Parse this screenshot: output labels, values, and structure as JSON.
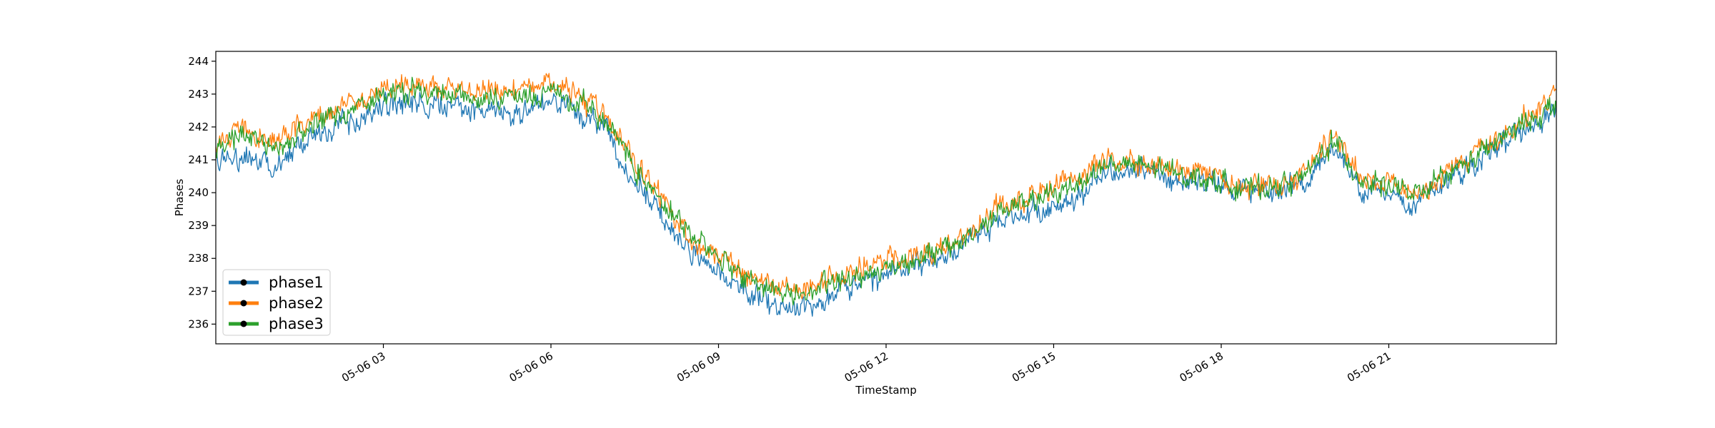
{
  "chart_data": {
    "type": "line",
    "title": "",
    "xlabel": "TimeStamp",
    "ylabel": "Phases",
    "xlim": [
      "2024-05-06 00:00",
      "2024-05-07 00:00"
    ],
    "ylim": [
      235.4,
      244.3
    ],
    "grid": false,
    "legend_position": "lower-left",
    "x_tick_labels": [
      "05-06 03",
      "05-06 06",
      "05-06 09",
      "05-06 12",
      "05-06 15",
      "05-06 18",
      "05-06 21"
    ],
    "x_tick_hours": [
      3,
      6,
      9,
      12,
      15,
      18,
      21
    ],
    "y_ticks": [
      236,
      237,
      238,
      239,
      240,
      241,
      242,
      243,
      244
    ],
    "series": [
      {
        "name": "phase1",
        "color": "#1f77b4",
        "x_hours": [
          0,
          0.5,
          1,
          1.5,
          2,
          2.5,
          3,
          3.5,
          4,
          4.5,
          5,
          5.5,
          6,
          6.5,
          7,
          7.5,
          8,
          8.5,
          9,
          9.5,
          10,
          10.5,
          11,
          11.5,
          12,
          12.5,
          13,
          13.5,
          14,
          14.5,
          15,
          15.5,
          16,
          16.5,
          17,
          17.5,
          18,
          18.5,
          19,
          19.5,
          20,
          20.5,
          21,
          21.5,
          22,
          22.5,
          23,
          23.5,
          24
        ],
        "values": [
          240.9,
          241.1,
          240.8,
          241.4,
          241.9,
          242.2,
          242.6,
          242.7,
          242.6,
          242.5,
          242.5,
          242.4,
          242.9,
          242.4,
          241.8,
          240.4,
          239.3,
          238.2,
          237.6,
          237.0,
          236.6,
          236.5,
          236.9,
          237.3,
          237.5,
          237.8,
          238.0,
          238.6,
          239.2,
          239.4,
          239.5,
          240.0,
          240.7,
          240.6,
          240.5,
          240.4,
          240.2,
          240.0,
          240.1,
          240.3,
          241.4,
          240.1,
          240.0,
          239.7,
          240.4,
          240.9,
          241.5,
          242.0,
          242.5
        ]
      },
      {
        "name": "phase2",
        "color": "#ff7f0e",
        "x_hours": [
          0,
          0.5,
          1,
          1.5,
          2,
          2.5,
          3,
          3.5,
          4,
          4.5,
          5,
          5.5,
          6,
          6.5,
          7,
          7.5,
          8,
          8.5,
          9,
          9.5,
          10,
          10.5,
          11,
          11.5,
          12,
          12.5,
          13,
          13.5,
          14,
          14.5,
          15,
          15.5,
          16,
          16.5,
          17,
          17.5,
          18,
          18.5,
          19,
          19.5,
          20,
          20.5,
          21,
          21.5,
          22,
          22.5,
          23,
          23.5,
          24
        ],
        "values": [
          241.5,
          241.9,
          241.5,
          242.0,
          242.5,
          242.8,
          243.2,
          243.3,
          243.2,
          243.1,
          243.1,
          243.0,
          243.4,
          242.9,
          242.3,
          240.9,
          239.8,
          238.6,
          238.1,
          237.5,
          237.1,
          237.0,
          237.4,
          237.7,
          237.9,
          238.1,
          238.3,
          238.8,
          239.6,
          239.8,
          240.2,
          240.6,
          241.1,
          240.9,
          240.8,
          240.6,
          240.4,
          240.1,
          240.3,
          240.6,
          241.8,
          240.5,
          240.3,
          240.0,
          240.6,
          241.2,
          241.7,
          242.3,
          242.9
        ]
      },
      {
        "name": "phase3",
        "color": "#2ca02c",
        "x_hours": [
          0,
          0.5,
          1,
          1.5,
          2,
          2.5,
          3,
          3.5,
          4,
          4.5,
          5,
          5.5,
          6,
          6.5,
          7,
          7.5,
          8,
          8.5,
          9,
          9.5,
          10,
          10.5,
          11,
          11.5,
          12,
          12.5,
          13,
          13.5,
          14,
          14.5,
          15,
          15.5,
          16,
          16.5,
          17,
          17.5,
          18,
          18.5,
          19,
          19.5,
          20,
          20.5,
          21,
          21.5,
          22,
          22.5,
          23,
          23.5,
          24
        ],
        "values": [
          241.4,
          241.8,
          241.3,
          241.8,
          242.3,
          242.6,
          243.0,
          243.1,
          243.0,
          242.9,
          242.9,
          242.8,
          243.2,
          242.8,
          242.2,
          240.8,
          239.8,
          238.7,
          238.1,
          237.4,
          237.0,
          236.9,
          237.2,
          237.5,
          237.7,
          238.0,
          238.2,
          238.7,
          239.4,
          239.7,
          239.9,
          240.4,
          240.9,
          240.8,
          240.7,
          240.5,
          240.3,
          240.1,
          240.2,
          240.5,
          241.6,
          240.4,
          240.2,
          239.9,
          240.5,
          241.0,
          241.6,
          242.2,
          242.7
        ]
      }
    ]
  }
}
